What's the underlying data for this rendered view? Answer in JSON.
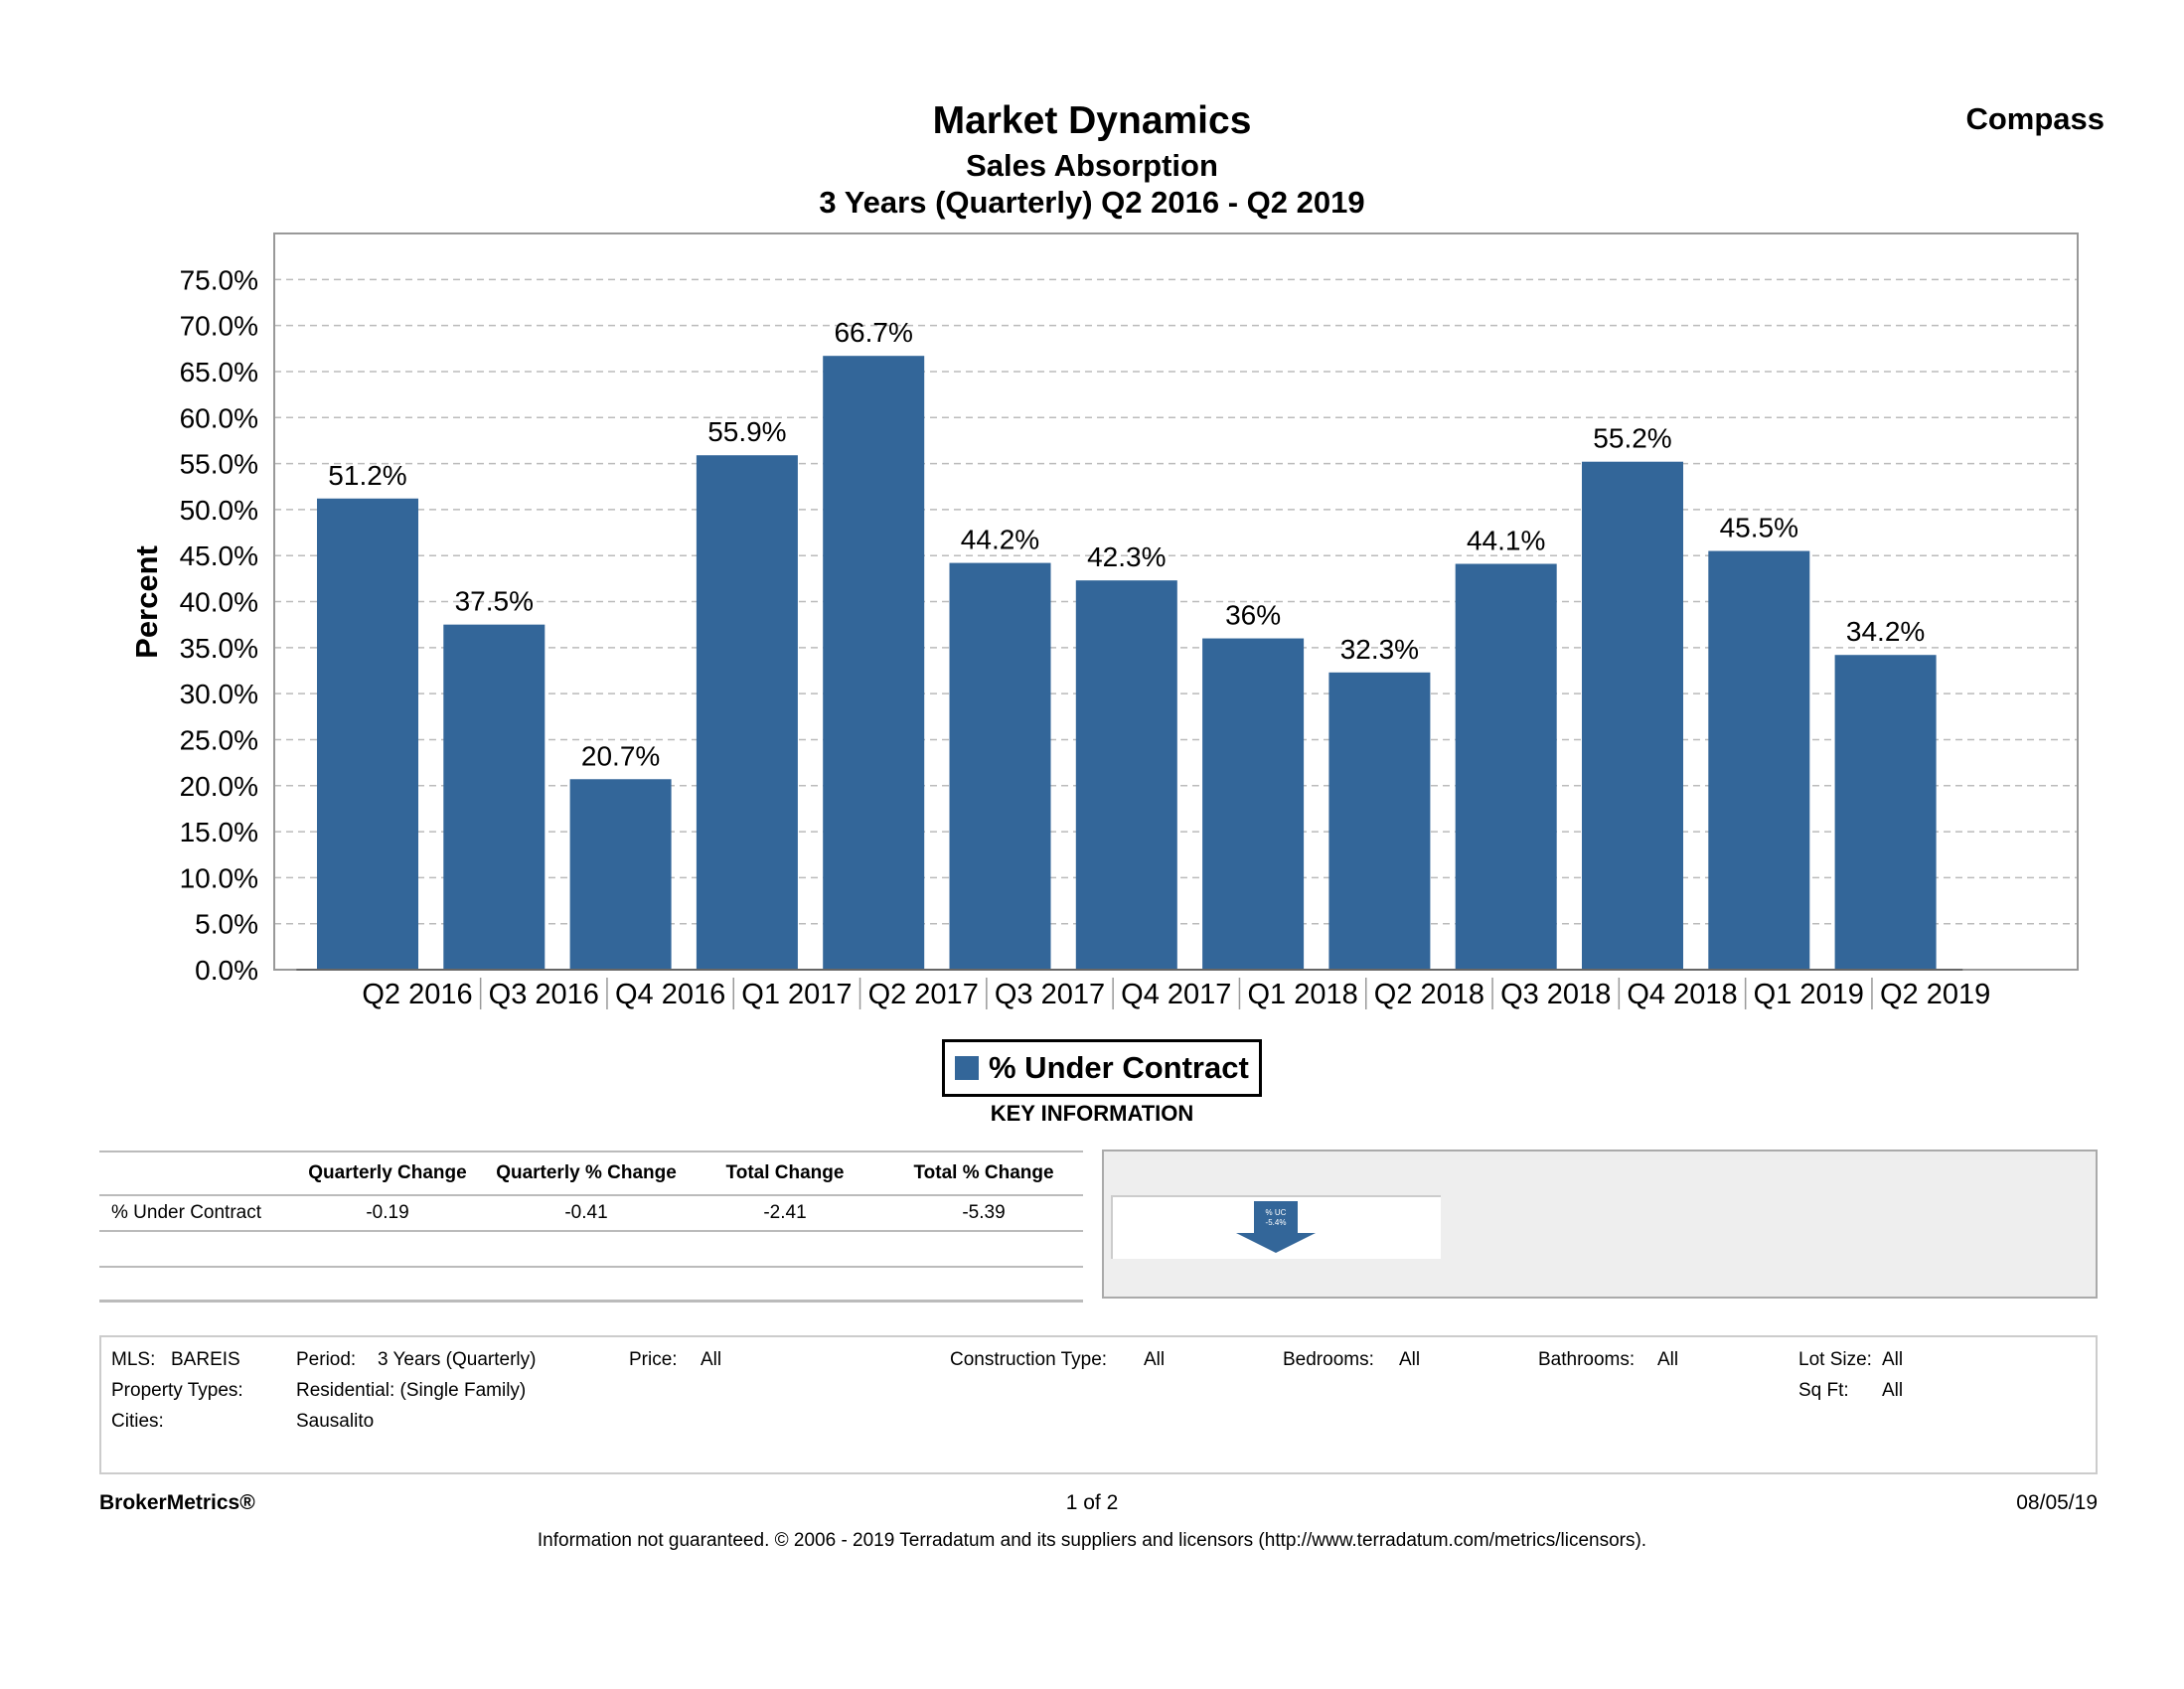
{
  "header": {
    "title": "Market Dynamics",
    "subtitle": "Sales Absorption",
    "period": "3 Years (Quarterly) Q2 2016 - Q2 2019",
    "brand": "Compass"
  },
  "chart_data": {
    "type": "bar",
    "title": "Market Dynamics",
    "subtitle": "Sales Absorption",
    "ylabel": "Percent",
    "xlabel": "",
    "ylim": [
      0,
      80
    ],
    "yticks": [
      0,
      5,
      10,
      15,
      20,
      25,
      30,
      35,
      40,
      45,
      50,
      55,
      60,
      65,
      70,
      75
    ],
    "ytick_labels": [
      "0.0%",
      "5.0%",
      "10.0%",
      "15.0%",
      "20.0%",
      "25.0%",
      "30.0%",
      "35.0%",
      "40.0%",
      "45.0%",
      "50.0%",
      "55.0%",
      "60.0%",
      "65.0%",
      "70.0%",
      "75.0%"
    ],
    "grid": true,
    "categories": [
      "Q2 2016",
      "Q3 2016",
      "Q4 2016",
      "Q1 2017",
      "Q2 2017",
      "Q3 2017",
      "Q4 2017",
      "Q1 2018",
      "Q2 2018",
      "Q3 2018",
      "Q4 2018",
      "Q1 2019",
      "Q2 2019"
    ],
    "series": [
      {
        "name": "% Under Contract",
        "color": "#336699",
        "values": [
          51.2,
          37.5,
          20.7,
          55.9,
          66.7,
          44.2,
          42.3,
          36,
          32.3,
          44.1,
          55.2,
          45.5,
          34.2
        ],
        "labels": [
          "51.2%",
          "37.5%",
          "20.7%",
          "55.9%",
          "66.7%",
          "44.2%",
          "42.3%",
          "36%",
          "32.3%",
          "44.1%",
          "55.2%",
          "45.5%",
          "34.2%"
        ]
      }
    ],
    "legend_position": "bottom-center"
  },
  "legend": {
    "label": "% Under Contract",
    "color": "#336699"
  },
  "key_information": {
    "heading": "KEY INFORMATION",
    "columns": [
      "",
      "Quarterly Change",
      "Quarterly % Change",
      "Total Change",
      "Total % Change"
    ],
    "rows": [
      {
        "label": "% Under Contract",
        "quarterly_change": "-0.19",
        "quarterly_pct_change": "-0.41",
        "total_change": "-2.41",
        "total_pct_change": "-5.39"
      }
    ],
    "indicator": {
      "line1": "% UC",
      "line2": "-5.4%",
      "direction": "down",
      "color": "#336699"
    }
  },
  "filters": {
    "mls_label": "MLS:",
    "mls_value": "BAREIS",
    "period_label": "Period:",
    "period_value": "3 Years (Quarterly)",
    "price_label": "Price:",
    "price_value": "All",
    "construction_label": "Construction Type:",
    "construction_value": "All",
    "bedrooms_label": "Bedrooms:",
    "bedrooms_value": "All",
    "bathrooms_label": "Bathrooms:",
    "bathrooms_value": "All",
    "lot_size_label": "Lot Size:",
    "lot_size_value": "All",
    "property_types_label": "Property Types:",
    "property_types_value": "Residential: (Single Family)",
    "sqft_label": "Sq Ft:",
    "sqft_value": "All",
    "cities_label": "Cities:",
    "cities_value": "Sausalito"
  },
  "footer": {
    "brand": "BrokerMetrics®",
    "page": "1 of 2",
    "date": "08/05/19",
    "disclaimer": "Information not guaranteed.  © 2006 - 2019 Terradatum and its suppliers and licensors (http://www.terradatum.com/metrics/licensors)."
  }
}
